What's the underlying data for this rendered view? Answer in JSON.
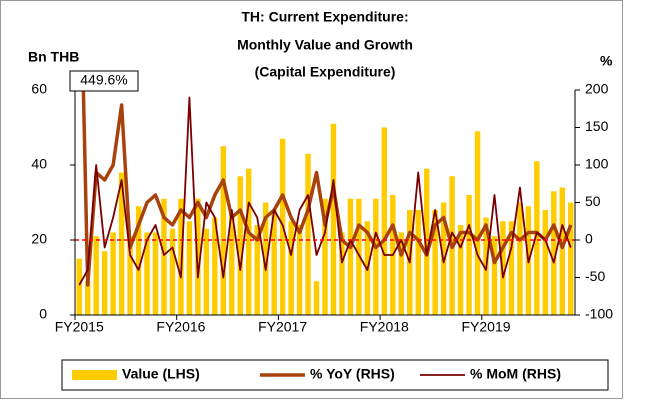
{
  "chart_data": {
    "type": "bar-line",
    "title": [
      "TH: Current Expenditure:",
      "Monthly Value and Growth",
      "(Capital Expenditure)"
    ],
    "y_label": "Bn THB",
    "y2_label": "%",
    "categories": [
      "FY2015",
      null,
      null,
      null,
      null,
      null,
      null,
      null,
      null,
      null,
      null,
      null,
      "FY2016",
      null,
      null,
      null,
      null,
      null,
      null,
      null,
      null,
      null,
      null,
      null,
      "FY2017",
      null,
      null,
      null,
      null,
      null,
      null,
      null,
      null,
      null,
      null,
      null,
      "FY2018",
      null,
      null,
      null,
      null,
      null,
      null,
      null,
      null,
      null,
      null,
      null,
      "FY2019",
      null,
      null,
      null,
      null,
      null,
      null,
      null,
      null,
      null,
      null
    ],
    "series": [
      {
        "name": "Value (LHS)",
        "kind": "bar",
        "color": "#ffcc00",
        "values": [
          15,
          9,
          21,
          17,
          22,
          38,
          21,
          29,
          22,
          22,
          31,
          23,
          31,
          25,
          31,
          23,
          26,
          45,
          27,
          37,
          39,
          24,
          30,
          28,
          47,
          25,
          24,
          43,
          9,
          31,
          51,
          22,
          31,
          31,
          25,
          31,
          50,
          32,
          22,
          28,
          28,
          39,
          28,
          30,
          37,
          24,
          32,
          49,
          26,
          21,
          25,
          25,
          30,
          29,
          41,
          28,
          33,
          34,
          30
        ]
      },
      {
        "name": "% YoY (RHS)",
        "kind": "line",
        "axis": "y2",
        "color": "#a8420c",
        "width": 3.5,
        "values": [
          449.6,
          -60,
          90,
          80,
          100,
          180,
          -10,
          20,
          50,
          60,
          30,
          20,
          40,
          30,
          50,
          30,
          60,
          80,
          30,
          40,
          10,
          0,
          30,
          40,
          60,
          30,
          10,
          40,
          90,
          20,
          70,
          0,
          -10,
          20,
          10,
          -10,
          0,
          20,
          -20,
          10,
          0,
          -20,
          20,
          30,
          -10,
          10,
          10,
          0,
          20,
          -30,
          -10,
          10,
          0,
          10,
          10,
          0,
          20,
          -10,
          20
        ]
      },
      {
        "name": "% MoM (RHS)",
        "kind": "line",
        "axis": "y2",
        "color": "#7a0000",
        "width": 1.8,
        "values": [
          -60,
          -40,
          100,
          -10,
          30,
          80,
          -20,
          -40,
          0,
          20,
          -20,
          -10,
          -50,
          190,
          -50,
          50,
          30,
          -50,
          40,
          -40,
          50,
          30,
          -40,
          40,
          20,
          -20,
          40,
          60,
          -20,
          10,
          80,
          -30,
          0,
          -20,
          -40,
          10,
          -20,
          -20,
          0,
          -30,
          90,
          -20,
          40,
          -30,
          10,
          -10,
          20,
          -20,
          -40,
          60,
          -50,
          -10,
          70,
          -30,
          10,
          0,
          -30,
          20,
          -10
        ]
      }
    ],
    "annotations": [
      {
        "text": "449.6%",
        "series": 1,
        "index": 0
      }
    ],
    "ylim": [
      0,
      60
    ],
    "yticks": [
      0,
      20,
      40,
      60
    ],
    "y2lim": [
      -100,
      200
    ],
    "y2ticks": [
      -100,
      -50,
      0,
      50,
      100,
      150,
      200
    ],
    "y2_refline": 0,
    "refline_color": "#ff0000",
    "legend": "bottom"
  }
}
